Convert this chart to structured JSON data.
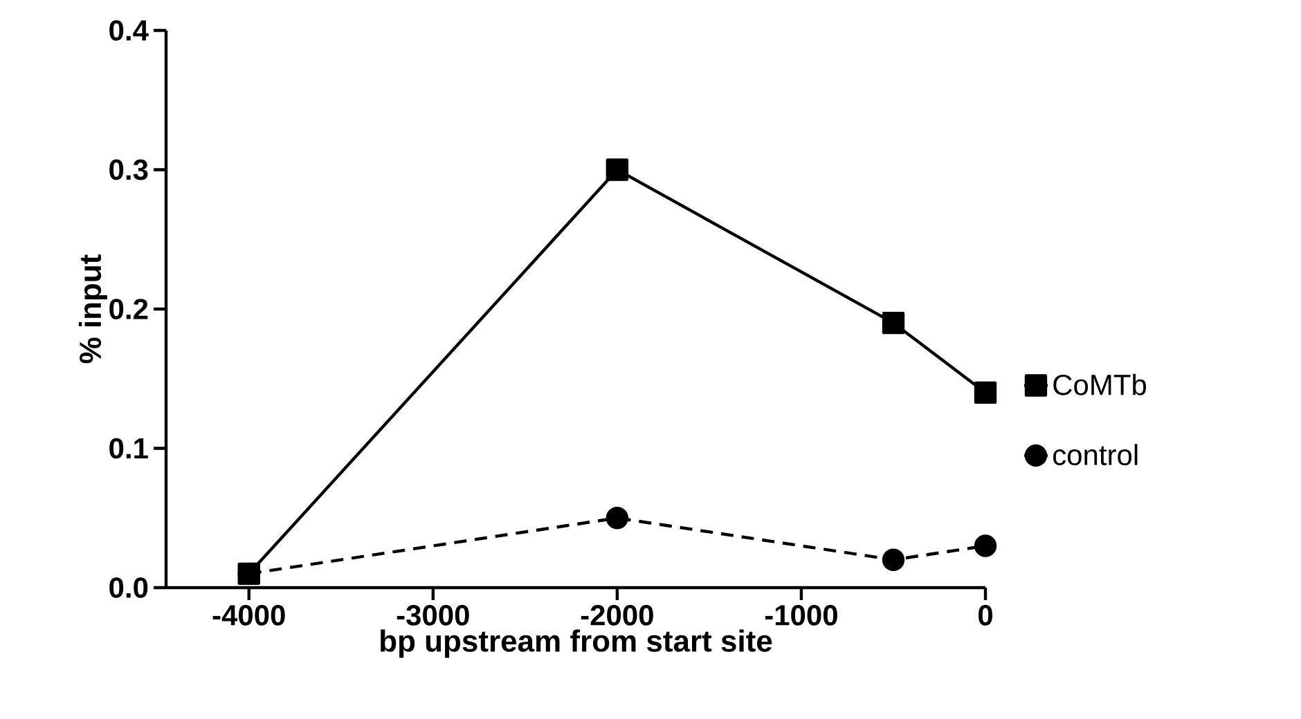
{
  "chart_data": {
    "type": "line",
    "xlabel": "bp upstream from start site",
    "ylabel": "% input",
    "x": [
      -4000,
      -2000,
      -500,
      0
    ],
    "series": [
      {
        "name": "CoMTb",
        "color": "#000000",
        "values": [
          0.01,
          0.3,
          0.19,
          0.14
        ],
        "marker": "square",
        "line_style": "solid"
      },
      {
        "name": "control",
        "color": "#000000",
        "values": [
          0.01,
          0.05,
          0.02,
          0.03
        ],
        "marker": "circle",
        "line_style": "dashed"
      }
    ],
    "xlim": [
      -4450,
      0
    ],
    "ylim": [
      0,
      0.4
    ],
    "xticks": [
      -4000,
      -3000,
      -2000,
      -1000,
      0
    ],
    "yticks": [
      {
        "value": 0,
        "label": "0.0"
      },
      {
        "value": 0.1,
        "label": "0.1"
      },
      {
        "value": 0.2,
        "label": "0.2"
      },
      {
        "value": 0.3,
        "label": "0.3"
      },
      {
        "value": 0.4,
        "label": "0.4"
      }
    ],
    "grid": false,
    "legend": "right"
  }
}
